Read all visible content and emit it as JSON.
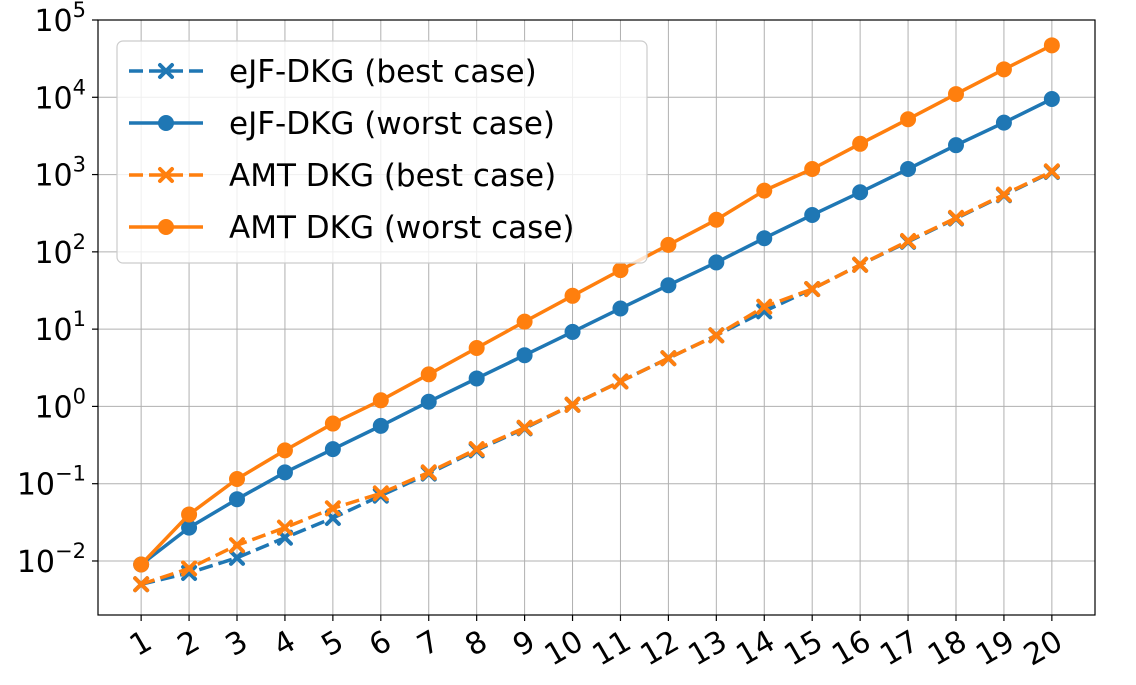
{
  "chart_data": {
    "type": "line",
    "title": "",
    "xlabel": "",
    "ylabel": "",
    "x": [
      1,
      2,
      3,
      4,
      5,
      6,
      7,
      8,
      9,
      10,
      11,
      12,
      13,
      14,
      15,
      16,
      17,
      18,
      19,
      20
    ],
    "xticks": [
      "1",
      "2",
      "3",
      "4",
      "5",
      "6",
      "7",
      "8",
      "9",
      "10",
      "11",
      "12",
      "13",
      "14",
      "15",
      "16",
      "17",
      "18",
      "19",
      "20"
    ],
    "yscale": "log",
    "ylim": [
      0.002,
      100000
    ],
    "yticks": [
      0.01,
      0.1,
      1,
      10,
      100,
      1000,
      10000,
      100000
    ],
    "ytick_labels": [
      {
        "base": "10",
        "exp": "−2"
      },
      {
        "base": "10",
        "exp": "−1"
      },
      {
        "base": "10",
        "exp": "0"
      },
      {
        "base": "10",
        "exp": "1"
      },
      {
        "base": "10",
        "exp": "2"
      },
      {
        "base": "10",
        "exp": "3"
      },
      {
        "base": "10",
        "exp": "4"
      },
      {
        "base": "10",
        "exp": "5"
      }
    ],
    "grid": true,
    "legend_position": "top-left",
    "series": [
      {
        "name": "eJF-DKG (best case)",
        "color": "#1f77b4",
        "line": "dashed",
        "marker": "x",
        "values": [
          0.005,
          0.007,
          0.011,
          0.02,
          0.036,
          0.07,
          0.135,
          0.27,
          0.52,
          1.05,
          2.1,
          4.2,
          8.3,
          17,
          33,
          68,
          135,
          270,
          540,
          1080
        ]
      },
      {
        "name": "eJF-DKG (worst case)",
        "color": "#1f77b4",
        "line": "solid",
        "marker": "circle",
        "values": [
          0.009,
          0.027,
          0.063,
          0.14,
          0.28,
          0.56,
          1.15,
          2.3,
          4.6,
          9.2,
          18.5,
          37,
          73,
          150,
          300,
          590,
          1180,
          2400,
          4700,
          9500
        ]
      },
      {
        "name": "AMT DKG (best case)",
        "color": "#ff7f0e",
        "line": "dashed",
        "marker": "x",
        "values": [
          0.005,
          0.008,
          0.016,
          0.027,
          0.048,
          0.075,
          0.14,
          0.28,
          0.53,
          1.05,
          2.1,
          4.2,
          8.3,
          19.5,
          33,
          68,
          138,
          275,
          550,
          1100
        ]
      },
      {
        "name": "AMT DKG (worst case)",
        "color": "#ff7f0e",
        "line": "solid",
        "marker": "circle",
        "values": [
          0.009,
          0.04,
          0.115,
          0.27,
          0.6,
          1.2,
          2.6,
          5.7,
          12.5,
          27,
          58,
          123,
          260,
          620,
          1180,
          2500,
          5200,
          11000,
          23000,
          47000
        ]
      }
    ]
  }
}
